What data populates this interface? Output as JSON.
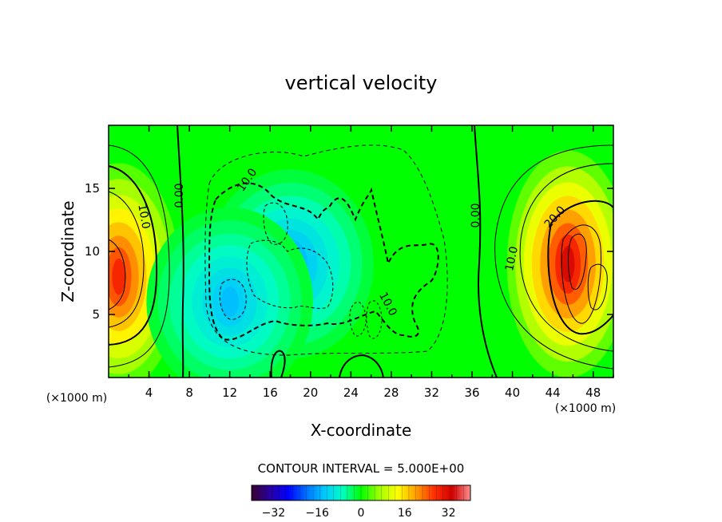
{
  "chart_data": {
    "type": "heatmap",
    "title": "vertical velocity",
    "xlabel": "X-coordinate",
    "ylabel": "Z-coordinate",
    "x_unit": "(×1000 m)",
    "y_unit": "(×1000 m)",
    "xlim": [
      0,
      50
    ],
    "ylim": [
      0,
      20
    ],
    "x_ticks": [
      "4",
      "8",
      "12",
      "16",
      "20",
      "24",
      "28",
      "32",
      "36",
      "40",
      "44",
      "48"
    ],
    "y_ticks": [
      "5",
      "10",
      "15"
    ],
    "contour_interval_text": "CONTOUR INTERVAL = 5.000E+00",
    "contour_labels": [
      "10.0",
      "0.00",
      "10.0",
      "10.0",
      "0.00",
      "10.0",
      "20.0"
    ],
    "colorbar": {
      "min": -40,
      "max": 40,
      "ticks": [
        "-32",
        "-16",
        "0",
        "16",
        "32"
      ],
      "colors": [
        "#3a0030",
        "#2a00a0",
        "#0000ff",
        "#0070ff",
        "#00c8ff",
        "#00ffc0",
        "#00ff00",
        "#a0ff00",
        "#ffff00",
        "#ffa000",
        "#ff3000",
        "#d00000",
        "#ff9090"
      ]
    },
    "features": [
      {
        "label": "updraft",
        "x": 45.5,
        "z": 9,
        "peak": 32
      },
      {
        "label": "updraft",
        "x": 1,
        "z": 8,
        "peak": 28
      },
      {
        "label": "downdraft",
        "x": 18,
        "z": 9,
        "peak": -16
      },
      {
        "label": "downdraft",
        "x": 12,
        "z": 6,
        "peak": -14
      }
    ]
  }
}
